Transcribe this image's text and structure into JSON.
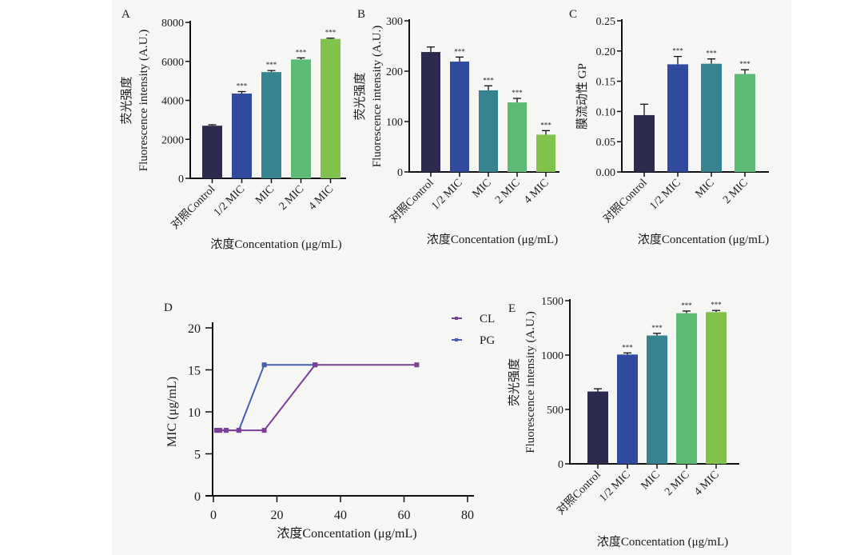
{
  "chart_data": [
    {
      "panel": "A",
      "type": "bar",
      "categories": [
        "对照Control",
        "1/2 MIC",
        "MIC",
        "2 MIC",
        "4 MIC"
      ],
      "values": [
        2700,
        4350,
        5450,
        6100,
        7150
      ],
      "errors": [
        50,
        100,
        80,
        80,
        40
      ],
      "significance": [
        "",
        "***",
        "***",
        "***",
        "***"
      ],
      "ylabel_cn": "荧光强度",
      "ylabel": "Fluorescence intensity (A.U.)",
      "xlabel": "浓度Concentation (μg/mL)",
      "ylim": [
        0,
        8000
      ],
      "yticks": [
        0,
        2000,
        4000,
        6000,
        8000
      ],
      "ytick_labels": [
        "0",
        "2000",
        "4000",
        "6000",
        "8000"
      ],
      "colors": [
        "#2d2a4f",
        "#2f4a9f",
        "#36848f",
        "#5bbb74",
        "#80c24b"
      ]
    },
    {
      "panel": "B",
      "type": "bar",
      "categories": [
        "对照Control",
        "1/2 MIC",
        "MIC",
        "2 MIC",
        "4 MIC"
      ],
      "values": [
        238,
        219,
        162,
        138,
        74
      ],
      "errors": [
        10,
        9,
        9,
        8,
        8
      ],
      "significance": [
        "",
        "***",
        "***",
        "***",
        "***"
      ],
      "ylabel_cn": "荧光强度",
      "ylabel": "Fluorescence intensity (A.U.)",
      "xlabel": "浓度Concentation (μg/mL)",
      "ylim": [
        0,
        300
      ],
      "yticks": [
        0,
        100,
        200,
        300
      ],
      "ytick_labels": [
        "0",
        "100",
        "200",
        "300"
      ],
      "colors": [
        "#2d2a4f",
        "#2f4a9f",
        "#36848f",
        "#5bbb74",
        "#80c24b"
      ]
    },
    {
      "panel": "C",
      "type": "bar",
      "categories": [
        "对照Control",
        "1/2 MIC",
        "MIC",
        "2 MIC"
      ],
      "values": [
        0.094,
        0.178,
        0.179,
        0.162
      ],
      "errors": [
        0.018,
        0.013,
        0.008,
        0.007
      ],
      "significance": [
        "",
        "***",
        "***",
        "***"
      ],
      "ylabel_cn": "膜流动性 GP",
      "ylabel": "",
      "xlabel": "浓度Concentation (μg/mL)",
      "ylim": [
        0,
        0.25
      ],
      "yticks": [
        0,
        0.05,
        0.1,
        0.15,
        0.2,
        0.25
      ],
      "ytick_labels": [
        "0.00",
        "0.05",
        "0.10",
        "0.15",
        "0.20",
        "0.25"
      ],
      "colors": [
        "#2d2a4f",
        "#2f4a9f",
        "#36848f",
        "#5bbb74"
      ]
    },
    {
      "panel": "D",
      "type": "line",
      "series": [
        {
          "name": "CL",
          "color": "#7b3f98",
          "x": [
            1,
            2,
            4,
            8,
            16,
            32,
            64
          ],
          "y": [
            7.8,
            7.8,
            7.8,
            7.8,
            7.8,
            15.6,
            15.6
          ]
        },
        {
          "name": "PG",
          "color": "#4360b0",
          "x": [
            1,
            2,
            4,
            8,
            16,
            32
          ],
          "y": [
            7.8,
            7.8,
            7.8,
            7.8,
            15.6,
            15.6
          ]
        }
      ],
      "ylabel": "MIC (μg/mL)",
      "xlabel": "浓度Concentation (μg/mL)",
      "xlim": [
        0,
        80
      ],
      "xticks": [
        0,
        20,
        40,
        60,
        80
      ],
      "xtick_labels": [
        "0",
        "20",
        "40",
        "60",
        "80"
      ],
      "ylim": [
        0,
        20
      ],
      "yticks": [
        0,
        5,
        10,
        15,
        20
      ],
      "ytick_labels": [
        "0",
        "5",
        "10",
        "15",
        "20"
      ],
      "legend": "top-right"
    },
    {
      "panel": "E",
      "type": "bar",
      "categories": [
        "对照Control",
        "1/2 MIC",
        "MIC",
        "2 MIC",
        "4 MIC"
      ],
      "values": [
        665,
        1005,
        1180,
        1385,
        1395
      ],
      "errors": [
        25,
        15,
        20,
        20,
        15
      ],
      "significance": [
        "",
        "***",
        "***",
        "***",
        "***"
      ],
      "ylabel_cn": "荧光强度",
      "ylabel": "Fluorescence intensity (A.U.)",
      "xlabel": "浓度Concentation (μg/mL)",
      "ylim": [
        0,
        1500
      ],
      "yticks": [
        0,
        500,
        1000,
        1500
      ],
      "ytick_labels": [
        "0",
        "500",
        "1000",
        "1500"
      ],
      "colors": [
        "#2d2a4f",
        "#2f4a9f",
        "#36848f",
        "#5bbb74",
        "#80c24b"
      ]
    }
  ]
}
